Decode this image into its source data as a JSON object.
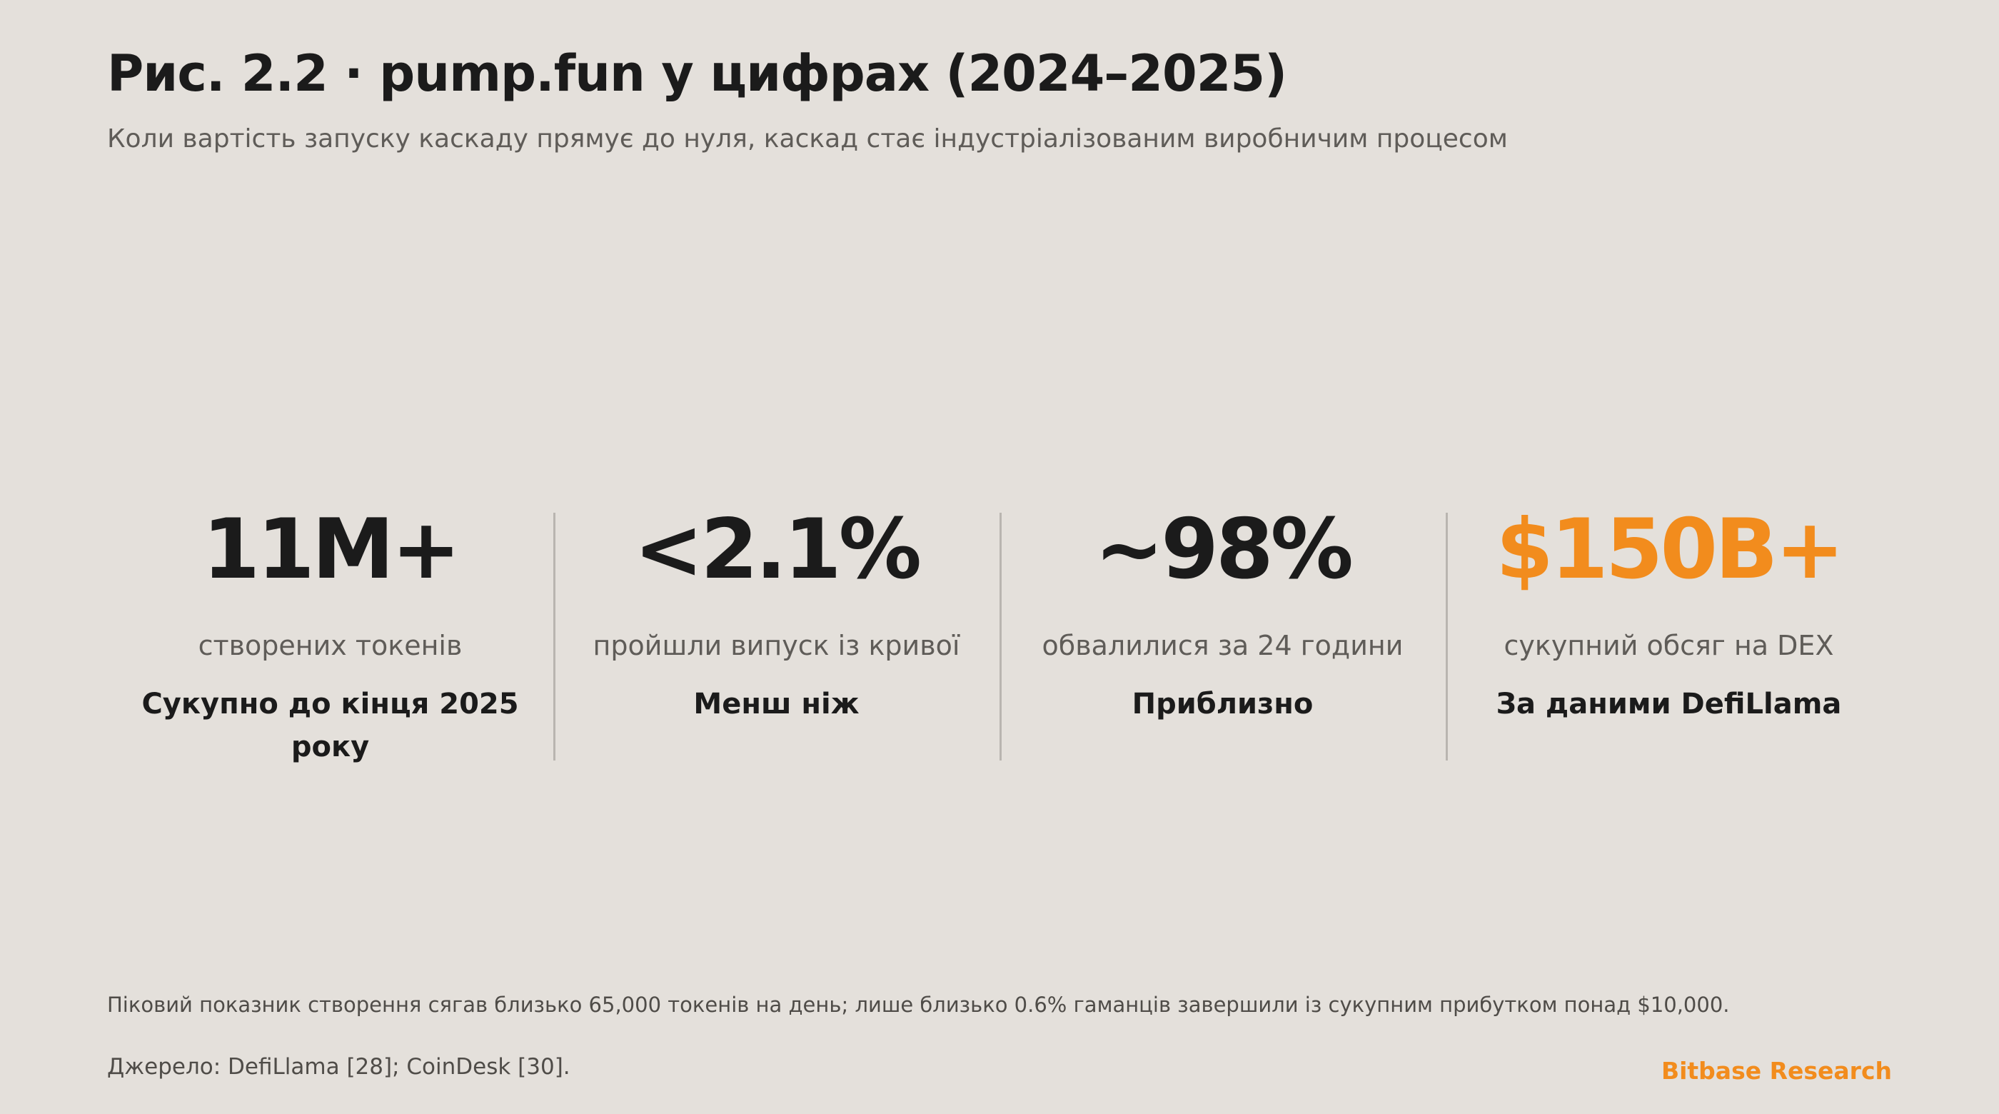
{
  "header": {
    "title": "Рис. 2.2 · pump.fun у цифрах (2024–2025)",
    "subtitle": "Коли вартість запуску каскаду прямує до нуля, каскад стає індустріалізованим виробничим процесом"
  },
  "stats": [
    {
      "value": "11M+",
      "label": "створених токенів",
      "note": "Сукупно до кінця 2025 року"
    },
    {
      "value": "<2.1%",
      "label": "пройшли випуск із кривої",
      "note": "Менш ніж"
    },
    {
      "value": "~98%",
      "label": "обвалилися за 24 години",
      "note": "Приблизно"
    },
    {
      "value": "$150B+",
      "label": "сукупний обсяг на DEX",
      "note": "За даними DefiLlama"
    }
  ],
  "footer": {
    "footnote": "Піковий показник створення сягав близько 65,000 токенів на день; лише близько 0.6% гаманців завершили із сукупним прибутком понад $10,000.",
    "source": "Джерело: DefiLlama [28]; CoinDesk [30].",
    "brand": "Bitbase Research"
  },
  "colors": {
    "background": "#e4e0db",
    "text": "#1b1b1b",
    "muted": "#5f5c58",
    "accent": "#f28c1d",
    "divider": "#b9b5b0"
  }
}
